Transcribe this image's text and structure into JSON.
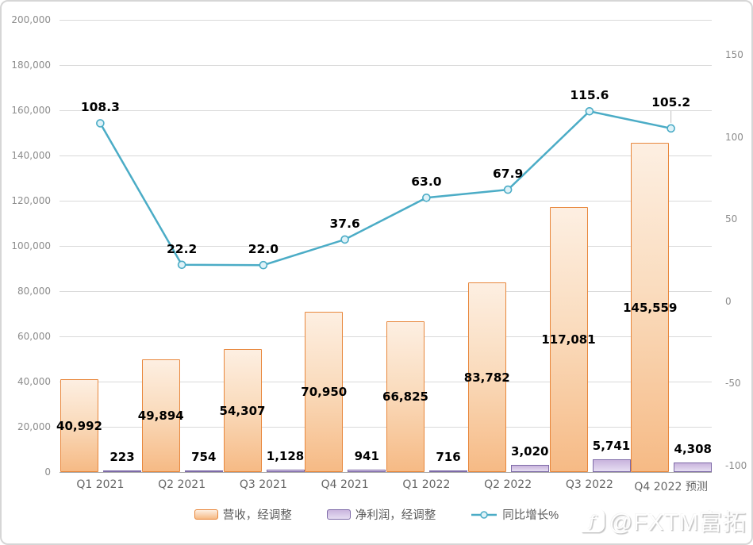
{
  "chart_data": {
    "type": "bar",
    "subtype": "combo-bar-line",
    "categories": [
      "Q1 2021",
      "Q2 2021",
      "Q3 2021",
      "Q4 2021",
      "Q1 2022",
      "Q2 2022",
      "Q3 2022",
      "Q4 2022 预测"
    ],
    "series": [
      {
        "name": "营收，经调整",
        "type": "bar",
        "axis": "left",
        "values": [
          40992,
          49894,
          54307,
          70950,
          66825,
          83782,
          117081,
          145559
        ],
        "labels": [
          "40,992",
          "49,894",
          "54,307",
          "70,950",
          "66,825",
          "83,782",
          "117,081",
          "145,559"
        ],
        "border_color": "#E8873C",
        "fill_top": "#FDEFE2",
        "fill_bottom": "#F6BA85"
      },
      {
        "name": "净利润，经调整",
        "type": "bar",
        "axis": "left",
        "values": [
          223,
          754,
          1128,
          941,
          716,
          3020,
          5741,
          4308
        ],
        "labels": [
          "223",
          "754",
          "1,128",
          "941",
          "716",
          "3,020",
          "5,741",
          "4,308"
        ],
        "border_color": "#7E6BA8",
        "fill_top": "#C9B4DD",
        "fill_bottom": "#E6DEF2"
      },
      {
        "name": "同比增长%",
        "type": "line",
        "axis": "right",
        "values": [
          108.3,
          22.2,
          22.0,
          37.6,
          63.0,
          67.9,
          115.6,
          105.2
        ],
        "labels": [
          "108.3",
          "22.2",
          "22.0",
          "37.6",
          "63.0",
          "67.9",
          "115.6",
          "105.2"
        ],
        "color": "#4BACC6",
        "marker_fill": "#DFF2F8"
      }
    ],
    "left_axis": {
      "min": 0,
      "max": 200000,
      "step": 20000,
      "ticks": [
        0,
        20000,
        40000,
        60000,
        80000,
        100000,
        120000,
        140000,
        160000,
        180000,
        200000
      ],
      "tick_labels": [
        "0",
        "20,000",
        "40,000",
        "60,000",
        "80,000",
        "100,000",
        "120,000",
        "140,000",
        "160,000",
        "180,000",
        "200,000"
      ]
    },
    "right_axis": {
      "ticks": [
        150,
        100,
        50,
        0,
        -50,
        -100
      ],
      "tick_labels": [
        "150",
        "100",
        "50",
        "0",
        "-50",
        "-100"
      ]
    },
    "grid": true,
    "legend_position": "bottom",
    "title": ""
  },
  "legend": {
    "revenue_label": "营收，经调整",
    "netprofit_label": "净利润，经调整",
    "growth_label": "同比增长%"
  },
  "watermark": {
    "logo_letter": "f",
    "text": "@FXTM富拓"
  }
}
